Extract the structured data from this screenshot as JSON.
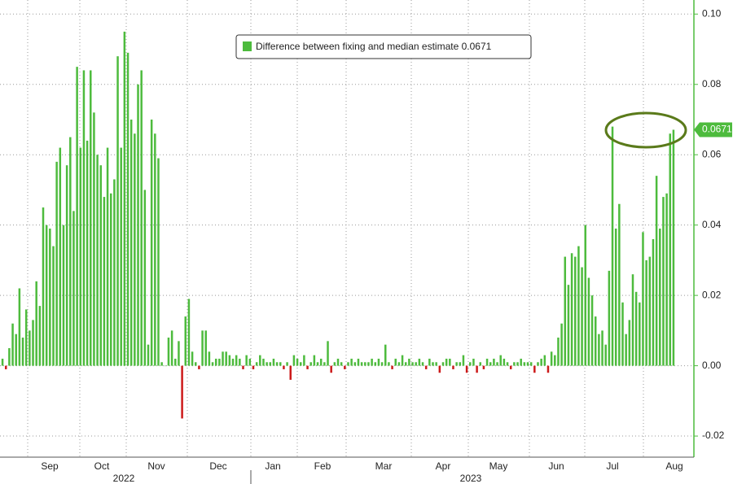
{
  "chart_data": {
    "type": "bar",
    "series": [
      {
        "name": "Difference between fixing and median estimate 0.0671",
        "color": "#4dbb3d",
        "negative_color": "#cc1a1a",
        "values": [
          0.002,
          -0.001,
          0.005,
          0.012,
          0.009,
          0.022,
          0.008,
          0.016,
          0.01,
          0.013,
          0.024,
          0.017,
          0.045,
          0.04,
          0.039,
          0.034,
          0.058,
          0.062,
          0.04,
          0.057,
          0.065,
          0.044,
          0.085,
          0.062,
          0.084,
          0.064,
          0.084,
          0.072,
          0.06,
          0.057,
          0.048,
          0.062,
          0.049,
          0.053,
          0.088,
          0.062,
          0.095,
          0.089,
          0.07,
          0.066,
          0.08,
          0.084,
          0.05,
          0.006,
          0.07,
          0.066,
          0.059,
          0.001,
          0.0,
          0.008,
          0.01,
          0.002,
          0.007,
          -0.015,
          0.014,
          0.019,
          0.004,
          0.001,
          -0.001,
          0.01,
          0.01,
          0.004,
          0.001,
          0.002,
          0.002,
          0.004,
          0.004,
          0.003,
          0.002,
          0.003,
          0.002,
          -0.001,
          0.003,
          0.002,
          -0.001,
          0.001,
          0.003,
          0.002,
          0.001,
          0.001,
          0.002,
          0.001,
          0.001,
          -0.001,
          0.001,
          -0.004,
          0.003,
          0.002,
          0.001,
          0.003,
          -0.001,
          0.001,
          0.003,
          0.001,
          0.002,
          0.001,
          0.007,
          -0.002,
          0.001,
          0.002,
          0.001,
          -0.001,
          0.001,
          0.002,
          0.001,
          0.002,
          0.001,
          0.001,
          0.001,
          0.002,
          0.001,
          0.002,
          0.001,
          0.006,
          0.001,
          -0.001,
          0.002,
          0.001,
          0.003,
          0.001,
          0.002,
          0.001,
          0.001,
          0.002,
          0.001,
          -0.001,
          0.002,
          0.001,
          0.001,
          -0.002,
          0.001,
          0.002,
          0.002,
          -0.001,
          0.001,
          0.001,
          0.003,
          -0.002,
          0.001,
          0.002,
          -0.002,
          0.001,
          -0.001,
          0.002,
          0.001,
          0.002,
          0.001,
          0.003,
          0.002,
          0.001,
          -0.001,
          0.001,
          0.001,
          0.002,
          0.001,
          0.001,
          0.001,
          -0.002,
          0.001,
          0.002,
          0.003,
          -0.002,
          0.004,
          0.003,
          0.008,
          0.012,
          0.031,
          0.023,
          0.032,
          0.031,
          0.034,
          0.028,
          0.04,
          0.025,
          0.02,
          0.014,
          0.009,
          0.01,
          0.006,
          0.027,
          0.068,
          0.039,
          0.046,
          0.018,
          0.009,
          0.013,
          0.026,
          0.021,
          0.018,
          0.038,
          0.03,
          0.031,
          0.036,
          0.054,
          0.039,
          0.048,
          0.049,
          0.066,
          0.0671
        ]
      }
    ],
    "months": [
      "Sep",
      "Oct",
      "Nov",
      "Dec",
      "Jan",
      "Feb",
      "Mar",
      "Apr",
      "May",
      "Jun",
      "Jul",
      "Aug"
    ],
    "years": [
      "2022",
      "2023"
    ],
    "ylim": [
      -0.026,
      0.104
    ],
    "yticks": [
      {
        "value": -0.02,
        "label": "-0.02"
      },
      {
        "value": 0,
        "label": "0.00"
      },
      {
        "value": 0.02,
        "label": "0.02"
      },
      {
        "value": 0.04,
        "label": "0.04"
      },
      {
        "value": 0.06,
        "label": "0.06"
      },
      {
        "value": 0.08,
        "label": "0.08"
      },
      {
        "value": 0.1,
        "label": "0.10"
      }
    ],
    "grid": true,
    "legend": "top"
  }
}
